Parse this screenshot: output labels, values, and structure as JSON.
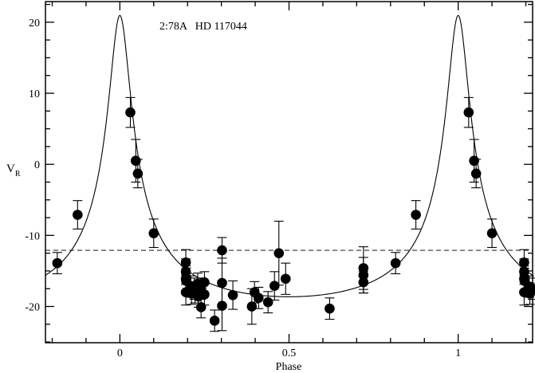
{
  "chart_data": {
    "type": "scatter",
    "title": "2:78A   HD 117044",
    "xlabel": "Phase",
    "ylabel_main": "V",
    "ylabel_sub": "R",
    "xlim": [
      -0.22,
      1.22
    ],
    "ylim": [
      -25.1,
      22.9
    ],
    "x_major_ticks": [
      0,
      0.5,
      1
    ],
    "x_tick_labels": [
      "0",
      "0.5",
      "1"
    ],
    "x_minor_step": 0.1,
    "y_major_ticks": [
      -20,
      -10,
      0,
      10,
      20
    ],
    "y_tick_labels": [
      "-20",
      "-10",
      "0",
      "10",
      "20"
    ],
    "y_minor_step": 2.5,
    "grid": false,
    "systemic_velocity": -12.1,
    "model": {
      "gamma": -12.1,
      "K": 19.8,
      "e": 0.67,
      "omega_deg": 0,
      "periastron_phase": 0
    },
    "points_repeat_by_phase": true,
    "points": [
      {
        "phase": 0.031,
        "v": 7.3,
        "err": 2.1
      },
      {
        "phase": 0.047,
        "v": 0.5,
        "err": 3.0
      },
      {
        "phase": 0.053,
        "v": -1.3,
        "err": 2.0
      },
      {
        "phase": 0.1,
        "v": -9.7,
        "err": 2.0
      },
      {
        "phase": 0.195,
        "v": -13.8,
        "err": 1.8
      },
      {
        "phase": 0.195,
        "v": -15.1,
        "err": 1.8
      },
      {
        "phase": 0.195,
        "v": -16.1,
        "err": 1.8
      },
      {
        "phase": 0.196,
        "v": -16.4,
        "err": 1.8
      },
      {
        "phase": 0.195,
        "v": -18.0,
        "err": 1.8
      },
      {
        "phase": 0.21,
        "v": -17.2,
        "err": 1.5
      },
      {
        "phase": 0.212,
        "v": -18.2,
        "err": 1.5
      },
      {
        "phase": 0.22,
        "v": -17.5,
        "err": 1.5
      },
      {
        "phase": 0.222,
        "v": -18.0,
        "err": 1.5
      },
      {
        "phase": 0.23,
        "v": -16.8,
        "err": 1.5
      },
      {
        "phase": 0.232,
        "v": -18.6,
        "err": 1.5
      },
      {
        "phase": 0.24,
        "v": -17.5,
        "err": 1.5
      },
      {
        "phase": 0.24,
        "v": -20.1,
        "err": 1.5
      },
      {
        "phase": 0.25,
        "v": -16.6,
        "err": 1.5
      },
      {
        "phase": 0.25,
        "v": -18.3,
        "err": 1.5
      },
      {
        "phase": 0.28,
        "v": -22.0,
        "err": 1.5
      },
      {
        "phase": 0.302,
        "v": -12.1,
        "err": 1.8
      },
      {
        "phase": 0.302,
        "v": -16.7,
        "err": 3.5
      },
      {
        "phase": 0.302,
        "v": -19.9,
        "err": 3.5
      },
      {
        "phase": 0.334,
        "v": -18.4,
        "err": 2.0
      },
      {
        "phase": 0.39,
        "v": -20.0,
        "err": 2.5
      },
      {
        "phase": 0.398,
        "v": -18.0,
        "err": 1.5
      },
      {
        "phase": 0.41,
        "v": -18.8,
        "err": 1.5
      },
      {
        "phase": 0.438,
        "v": -19.4,
        "err": 1.5
      },
      {
        "phase": 0.457,
        "v": -17.1,
        "err": 2.0
      },
      {
        "phase": 0.47,
        "v": -12.5,
        "err": 4.5
      },
      {
        "phase": 0.49,
        "v": -16.1,
        "err": 2.2
      },
      {
        "phase": 0.62,
        "v": -20.3,
        "err": 1.5
      },
      {
        "phase": 0.72,
        "v": -14.6,
        "err": 3.0
      },
      {
        "phase": 0.72,
        "v": -15.6,
        "err": 2.5
      },
      {
        "phase": 0.72,
        "v": -16.6,
        "err": 1.5
      },
      {
        "phase": 0.815,
        "v": -13.9,
        "err": 1.5
      },
      {
        "phase": 0.875,
        "v": -7.1,
        "err": 2.0
      }
    ]
  }
}
